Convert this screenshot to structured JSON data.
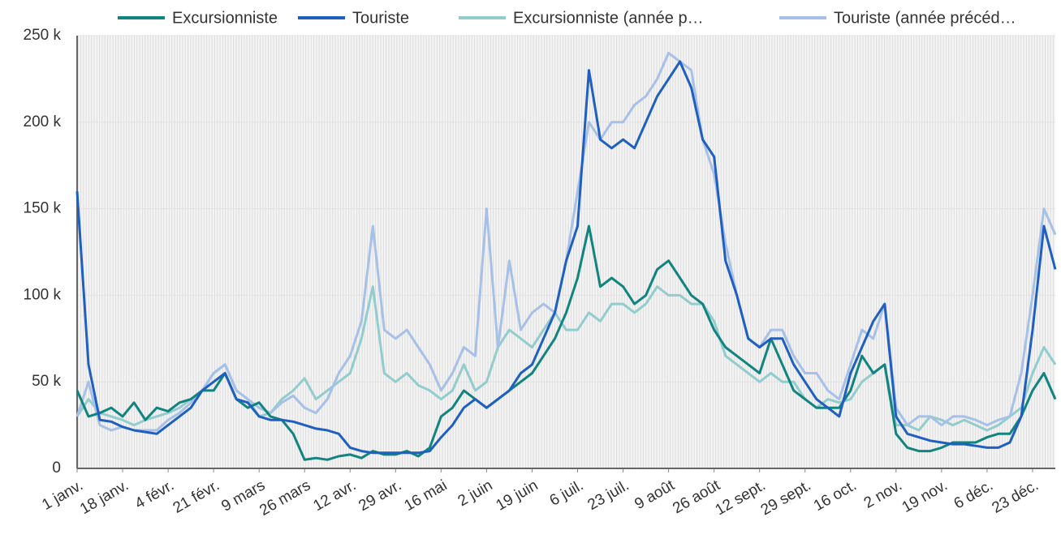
{
  "chart_data": {
    "type": "line",
    "categories": [
      "1 janv.",
      null,
      null,
      null,
      "18 janv.",
      null,
      null,
      null,
      "4 févr.",
      null,
      null,
      null,
      "21 févr.",
      null,
      null,
      null,
      "9 mars",
      null,
      null,
      null,
      "26 mars",
      null,
      null,
      null,
      "12 avr.",
      null,
      null,
      null,
      "29 avr.",
      null,
      null,
      null,
      "16 mai",
      null,
      null,
      null,
      "2 juin",
      null,
      null,
      null,
      "19 juin",
      null,
      null,
      null,
      "6 juil.",
      null,
      null,
      null,
      "23 juil.",
      null,
      null,
      null,
      "9 août",
      null,
      null,
      null,
      "26 août",
      null,
      null,
      null,
      "12 sept.",
      null,
      null,
      null,
      "29 sept.",
      null,
      null,
      null,
      "16 oct.",
      null,
      null,
      null,
      "2 nov.",
      null,
      null,
      null,
      "19 nov.",
      null,
      null,
      null,
      "6 déc.",
      null,
      null,
      null,
      "23 déc.",
      null,
      null
    ],
    "series": [
      {
        "name": "Excursionniste",
        "color": "#11847f",
        "values": [
          45000,
          30000,
          32000,
          35000,
          30000,
          38000,
          28000,
          35000,
          33000,
          38000,
          40000,
          45000,
          45000,
          55000,
          40000,
          35000,
          38000,
          30000,
          28000,
          20000,
          5000,
          6000,
          5000,
          7000,
          8000,
          6000,
          10000,
          8000,
          8000,
          10000,
          7000,
          12000,
          30000,
          35000,
          45000,
          40000,
          35000,
          40000,
          45000,
          50000,
          55000,
          65000,
          75000,
          90000,
          110000,
          140000,
          105000,
          110000,
          105000,
          95000,
          100000,
          115000,
          120000,
          110000,
          100000,
          95000,
          80000,
          70000,
          65000,
          60000,
          55000,
          75000,
          60000,
          45000,
          40000,
          35000,
          35000,
          35000,
          45000,
          65000,
          55000,
          60000,
          20000,
          12000,
          10000,
          10000,
          12000,
          15000,
          15000,
          15000,
          18000,
          20000,
          20000,
          30000,
          45000,
          55000,
          40000
        ]
      },
      {
        "name": "Touriste",
        "color": "#1f5fbf",
        "values": [
          160000,
          60000,
          28000,
          27000,
          24000,
          22000,
          21000,
          20000,
          25000,
          30000,
          35000,
          45000,
          50000,
          55000,
          40000,
          38000,
          30000,
          28000,
          28000,
          27000,
          25000,
          23000,
          22000,
          20000,
          12000,
          10000,
          9000,
          9000,
          9000,
          9000,
          9000,
          10000,
          18000,
          25000,
          35000,
          40000,
          35000,
          40000,
          45000,
          55000,
          60000,
          75000,
          90000,
          120000,
          140000,
          230000,
          190000,
          185000,
          190000,
          185000,
          200000,
          215000,
          225000,
          235000,
          220000,
          190000,
          180000,
          120000,
          100000,
          75000,
          70000,
          75000,
          75000,
          60000,
          50000,
          40000,
          35000,
          30000,
          55000,
          70000,
          85000,
          95000,
          30000,
          20000,
          18000,
          16000,
          15000,
          14000,
          14000,
          13000,
          12000,
          12000,
          15000,
          30000,
          80000,
          140000,
          115000
        ]
      },
      {
        "name": "Excursionniste (année p…",
        "color": "#93cccd",
        "values": [
          30000,
          40000,
          32000,
          30000,
          28000,
          25000,
          28000,
          30000,
          32000,
          35000,
          40000,
          45000,
          55000,
          60000,
          45000,
          40000,
          30000,
          32000,
          40000,
          45000,
          52000,
          40000,
          45000,
          50000,
          55000,
          75000,
          105000,
          55000,
          50000,
          55000,
          48000,
          45000,
          40000,
          45000,
          60000,
          45000,
          50000,
          70000,
          80000,
          75000,
          70000,
          80000,
          90000,
          80000,
          80000,
          90000,
          85000,
          95000,
          95000,
          90000,
          95000,
          105000,
          100000,
          100000,
          95000,
          95000,
          85000,
          65000,
          60000,
          55000,
          50000,
          55000,
          50000,
          50000,
          40000,
          35000,
          40000,
          38000,
          40000,
          50000,
          55000,
          60000,
          25000,
          25000,
          22000,
          30000,
          28000,
          25000,
          28000,
          25000,
          22000,
          25000,
          30000,
          35000,
          55000,
          70000,
          60000
        ]
      },
      {
        "name": "Touriste (année précéd…",
        "color": "#a6c0e8",
        "values": [
          30000,
          50000,
          25000,
          22000,
          24000,
          22000,
          22000,
          22000,
          28000,
          32000,
          38000,
          45000,
          55000,
          60000,
          45000,
          40000,
          35000,
          32000,
          38000,
          42000,
          35000,
          32000,
          40000,
          55000,
          65000,
          85000,
          140000,
          80000,
          75000,
          80000,
          70000,
          60000,
          45000,
          55000,
          70000,
          65000,
          150000,
          70000,
          120000,
          80000,
          90000,
          95000,
          90000,
          120000,
          160000,
          200000,
          190000,
          200000,
          200000,
          210000,
          215000,
          225000,
          240000,
          235000,
          230000,
          190000,
          170000,
          130000,
          100000,
          75000,
          70000,
          80000,
          80000,
          65000,
          55000,
          55000,
          45000,
          40000,
          60000,
          80000,
          75000,
          95000,
          35000,
          25000,
          30000,
          30000,
          25000,
          30000,
          30000,
          28000,
          25000,
          28000,
          30000,
          55000,
          100000,
          150000,
          135000
        ]
      }
    ],
    "ylim": [
      0,
      250000
    ],
    "yticks": [
      {
        "value": 0,
        "label": "0"
      },
      {
        "value": 50000,
        "label": "50 k"
      },
      {
        "value": 100000,
        "label": "100 k"
      },
      {
        "value": 150000,
        "label": "150 k"
      },
      {
        "value": 200000,
        "label": "200 k"
      },
      {
        "value": 250000,
        "label": "250 k"
      }
    ],
    "grid": true,
    "legend": "top"
  }
}
